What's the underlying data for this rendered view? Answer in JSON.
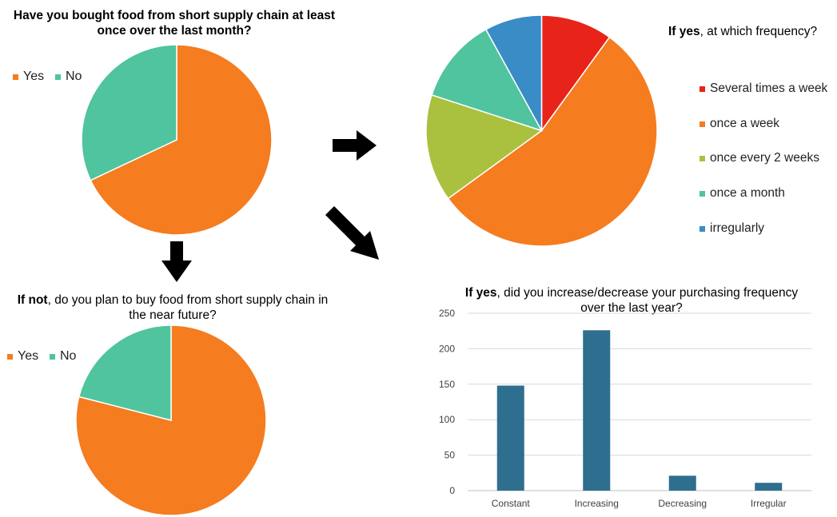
{
  "chart_data": [
    {
      "type": "pie",
      "title": "Have you bought food from short supply chain at least once over the last month?",
      "legend": [
        "Yes",
        "No"
      ],
      "slices": [
        {
          "name": "Yes",
          "value": 68,
          "color": "#F57C1F"
        },
        {
          "name": "No",
          "value": 32,
          "color": "#4FC49E"
        }
      ],
      "start_angle_deg": 0,
      "legend_position": "top-left"
    },
    {
      "type": "pie",
      "title_bold": "If yes",
      "title_rest": ", at which frequency?",
      "slices": [
        {
          "name": "Several times a week",
          "value": 10,
          "color": "#E8231A"
        },
        {
          "name": "once a week",
          "value": 55,
          "color": "#F57C1F"
        },
        {
          "name": "once every 2 weeks",
          "value": 15,
          "color": "#A9C13E"
        },
        {
          "name": "once a month",
          "value": 12,
          "color": "#4FC49E"
        },
        {
          "name": "irregularly",
          "value": 8,
          "color": "#3A8CC6"
        }
      ],
      "start_angle_deg": 0,
      "legend_position": "right"
    },
    {
      "type": "pie",
      "title_bold": "If not",
      "title_rest": ", do you plan to buy food from short supply chain in the near future?",
      "legend": [
        "Yes",
        "No"
      ],
      "slices": [
        {
          "name": "Yes",
          "value": 79,
          "color": "#F57C1F"
        },
        {
          "name": "No",
          "value": 21,
          "color": "#4FC49E"
        }
      ],
      "start_angle_deg": 0,
      "legend_position": "top-left"
    },
    {
      "type": "bar",
      "title_bold": "If yes",
      "title_rest": ", did you increase/decrease your purchasing frequency over the last year?",
      "categories": [
        "Constant",
        "Increasing",
        "Decreasing",
        "Irregular"
      ],
      "values": [
        148,
        226,
        21,
        11
      ],
      "ylim": [
        0,
        250
      ],
      "yticks": [
        "0",
        "50",
        "100",
        "150",
        "200",
        "250"
      ],
      "grid": true,
      "bar_color": "#2E6E8E"
    }
  ]
}
